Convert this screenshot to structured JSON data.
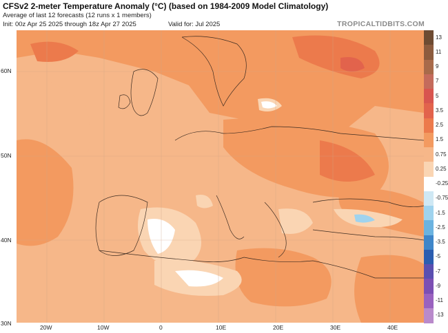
{
  "header": {
    "title": "CFSv2 2-meter Temperature Anomaly (°C) (based on 1984-2009 Model Climatology)",
    "subtitle": "Average of last 12 forecasts (12 runs x 1 members)",
    "init": "Init: 00z Apr 25 2025 through 18z Apr 27 2025",
    "valid": "Valid for: Jul 2025",
    "brand": "TROPICALTIDBITS.COM"
  },
  "axes": {
    "lat_labels": [
      "60N",
      "50N",
      "40N",
      "30N"
    ],
    "lon_labels": [
      "20W",
      "10W",
      "0",
      "10E",
      "20E",
      "30E",
      "40E"
    ]
  },
  "colorbar": {
    "levels": [
      "13",
      "11",
      "9",
      "7",
      "5",
      "3.5",
      "2.5",
      "1.5",
      "0.75",
      "0.25",
      "-0.25",
      "-0.75",
      "-1.5",
      "-2.5",
      "-3.5",
      "-5",
      "-7",
      "-9",
      "-11",
      "-13"
    ],
    "colors": [
      "#6e4b32",
      "#8c5b3e",
      "#a86a4a",
      "#c46b5c",
      "#d8554f",
      "#e2634c",
      "#ec7a4c",
      "#f39a60",
      "#f6b789",
      "#fad5b3",
      "#ffffff",
      "#cfe8f4",
      "#9fd3ee",
      "#6bb3e0",
      "#3f86c9",
      "#2b5db0",
      "#5a4fb0",
      "#7c4fb3",
      "#9a62bf",
      "#b98acb"
    ]
  }
}
